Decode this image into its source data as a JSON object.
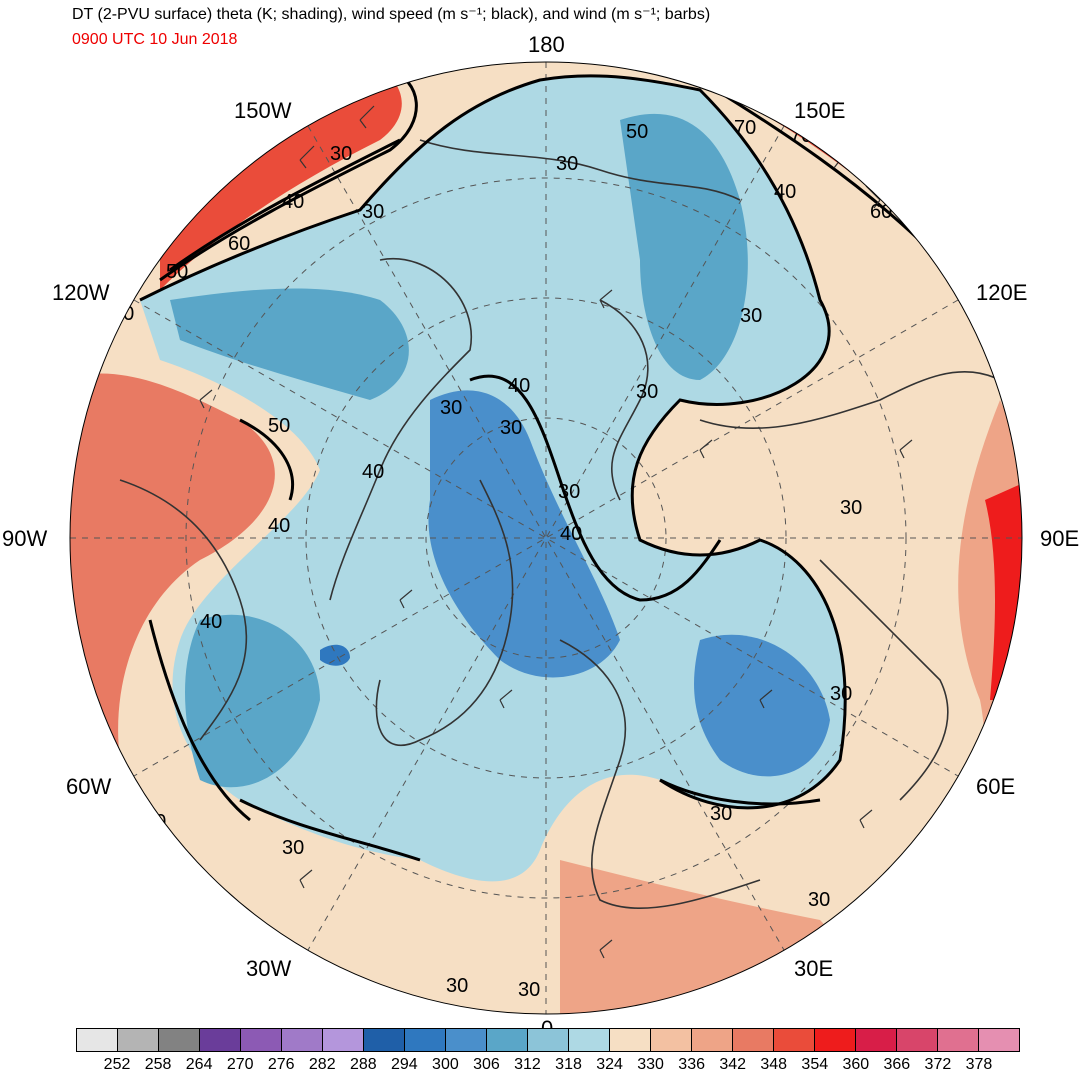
{
  "title": "DT (2-PVU surface) theta (K; shading), wind speed (m s⁻¹; black), and wind (m s⁻¹; barbs)",
  "subtitle": "0900 UTC 10 Jun 2018",
  "colors": {
    "subtitle": "#ee0000",
    "contours": "#000000",
    "coastlines": "#333333",
    "grid": "#555555"
  },
  "projection": "north-polar-stereographic",
  "longitude_labels": [
    "180",
    "150E",
    "120E",
    "90E",
    "60E",
    "30E",
    "0",
    "30W",
    "60W",
    "90W",
    "120W",
    "150W"
  ],
  "contour_labels": [
    "30",
    "40",
    "50",
    "60",
    "70"
  ],
  "colorbar": {
    "colors": [
      "#e6e6e6",
      "#b4b4b4",
      "#828282",
      "#6a3d9a",
      "#8c5ab4",
      "#a07ac8",
      "#b496dc",
      "#1f5fa8",
      "#2f78bf",
      "#4a8fcb",
      "#5aa6c8",
      "#8cc4d8",
      "#aed9e4",
      "#f6dfc4",
      "#f3c1a2",
      "#eea487",
      "#e87a63",
      "#ea4c3a",
      "#ee1c1c",
      "#d81e48",
      "#d8456a",
      "#e07090",
      "#e58fb1"
    ],
    "tick_labels": [
      "252",
      "258",
      "264",
      "270",
      "276",
      "282",
      "288",
      "294",
      "300",
      "306",
      "312",
      "318",
      "324",
      "330",
      "336",
      "342",
      "348",
      "354",
      "360",
      "366",
      "372",
      "378"
    ]
  }
}
